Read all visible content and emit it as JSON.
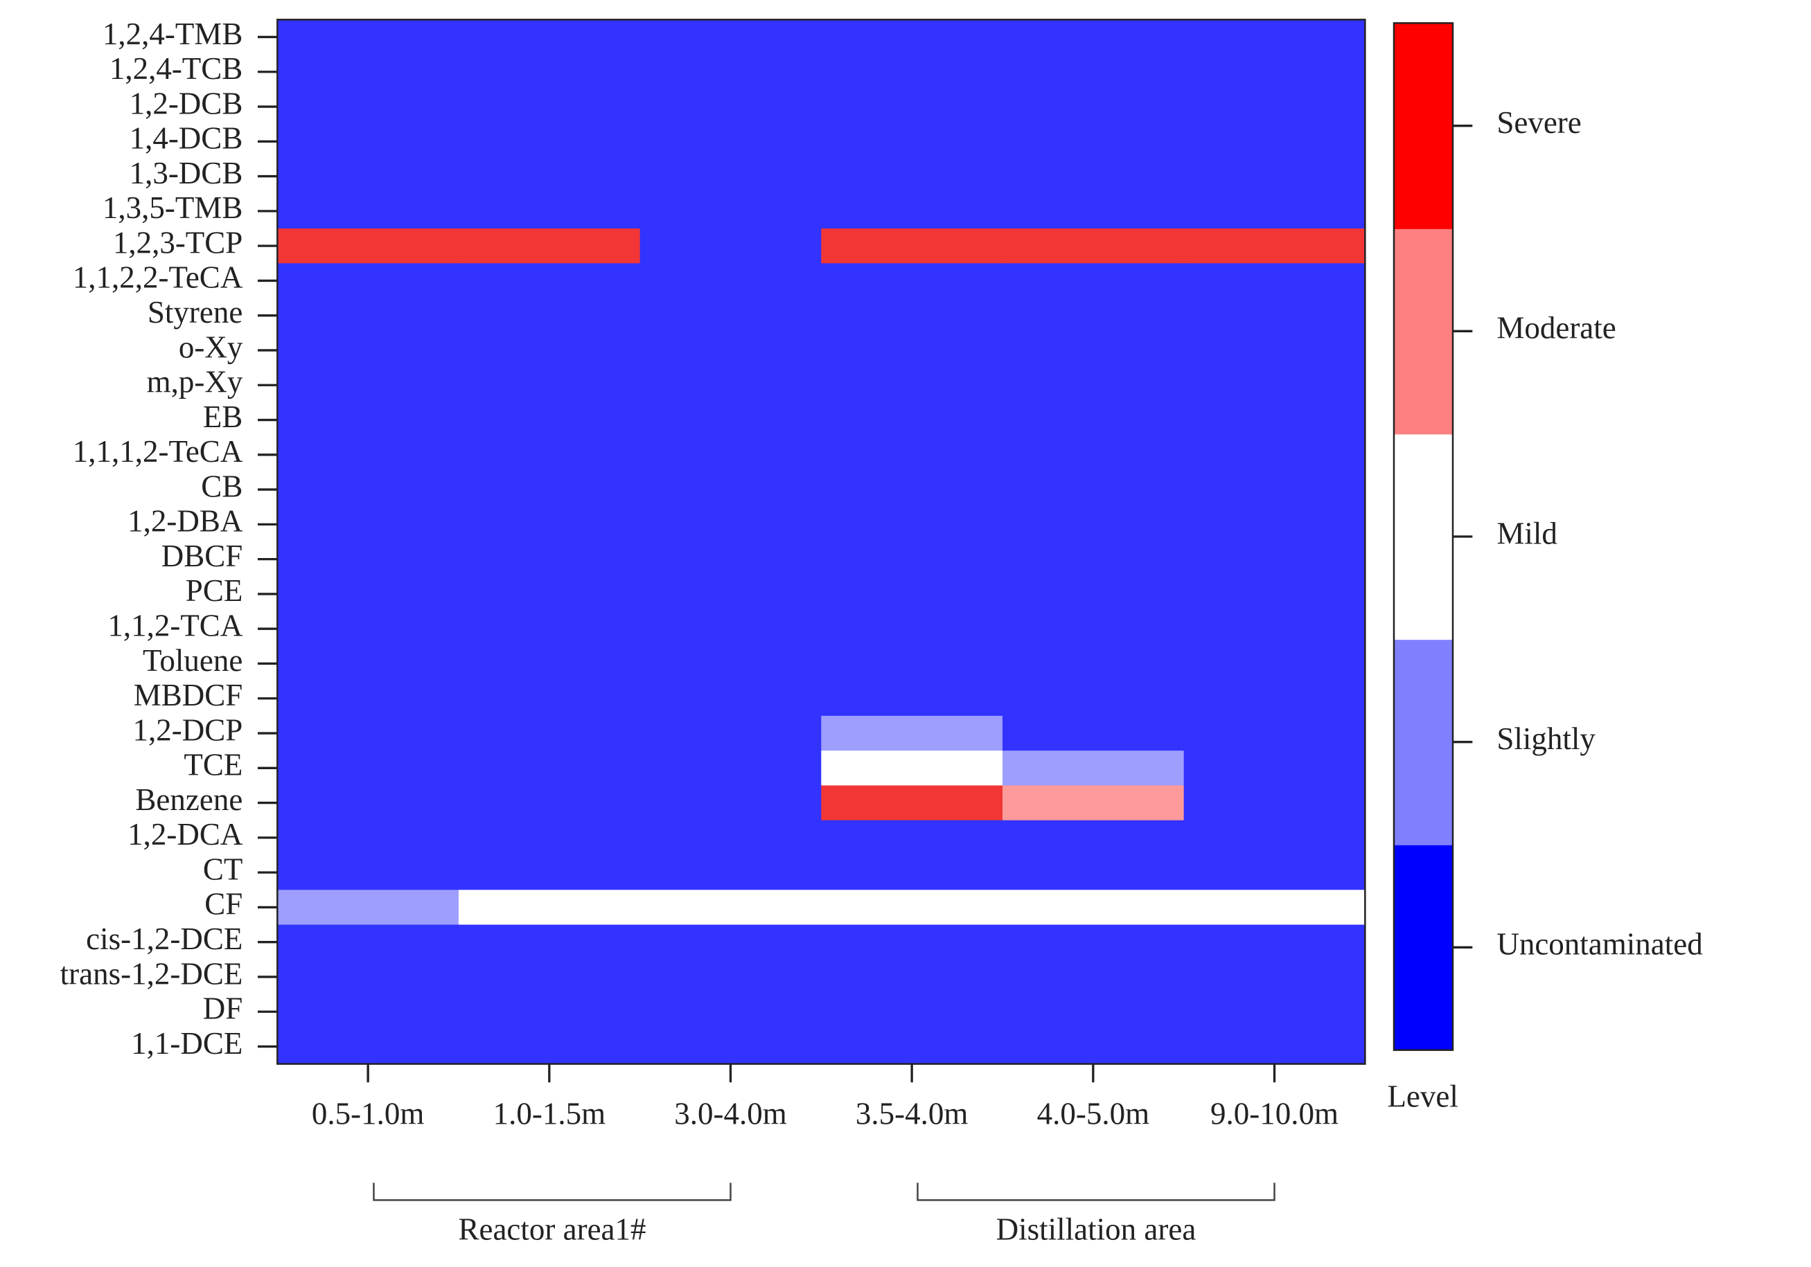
{
  "chart_data": {
    "type": "heatmap",
    "categories": [
      "0.5-1.0m",
      "1.0-1.5m",
      "3.0-4.0m",
      "3.5-4.0m",
      "4.0-5.0m",
      "9.0-10.0m"
    ],
    "rows": [
      "1,2,4-TMB",
      "1,2,4-TCB",
      "1,2-DCB",
      "1,4-DCB",
      "1,3-DCB",
      "1,3,5-TMB",
      "1,2,3-TCP",
      "1,1,2,2-TeCA",
      "Styrene",
      "o-Xy",
      "m,p-Xy",
      "EB",
      "1,1,1,2-TeCA",
      "CB",
      "1,2-DBA",
      "DBCF",
      "PCE",
      "1,1,2-TCA",
      "Toluene",
      "MBDCF",
      "1,2-DCP",
      "TCE",
      "Benzene",
      "1,2-DCA",
      "CT",
      "CF",
      "cis-1,2-DCE",
      "trans-1,2-DCE",
      "DF",
      "1,1-DCE"
    ],
    "z": [
      [
        0,
        0,
        0,
        0,
        0,
        0
      ],
      [
        0,
        0,
        0,
        0,
        0,
        0
      ],
      [
        0,
        0,
        0,
        0,
        0,
        0
      ],
      [
        0,
        0,
        0,
        0,
        0,
        0
      ],
      [
        0,
        0,
        0,
        0,
        0,
        0
      ],
      [
        0,
        0,
        0,
        0,
        0,
        0
      ],
      [
        4,
        4,
        0,
        4,
        4,
        4
      ],
      [
        0,
        0,
        0,
        0,
        0,
        0
      ],
      [
        0,
        0,
        0,
        0,
        0,
        0
      ],
      [
        0,
        0,
        0,
        0,
        0,
        0
      ],
      [
        0,
        0,
        0,
        0,
        0,
        0
      ],
      [
        0,
        0,
        0,
        0,
        0,
        0
      ],
      [
        0,
        0,
        0,
        0,
        0,
        0
      ],
      [
        0,
        0,
        0,
        0,
        0,
        0
      ],
      [
        0,
        0,
        0,
        0,
        0,
        0
      ],
      [
        0,
        0,
        0,
        0,
        0,
        0
      ],
      [
        0,
        0,
        0,
        0,
        0,
        0
      ],
      [
        0,
        0,
        0,
        0,
        0,
        0
      ],
      [
        0,
        0,
        0,
        0,
        0,
        0
      ],
      [
        0,
        0,
        0,
        0,
        0,
        0
      ],
      [
        0,
        0,
        0,
        1,
        0,
        0
      ],
      [
        0,
        0,
        0,
        2,
        1,
        0
      ],
      [
        0,
        0,
        0,
        4,
        3,
        0
      ],
      [
        0,
        0,
        0,
        0,
        0,
        0
      ],
      [
        0,
        0,
        0,
        0,
        0,
        0
      ],
      [
        1,
        2,
        2,
        2,
        2,
        2
      ],
      [
        0,
        0,
        0,
        0,
        0,
        0
      ],
      [
        0,
        0,
        0,
        0,
        0,
        0
      ],
      [
        0,
        0,
        0,
        0,
        0,
        0
      ],
      [
        0,
        0,
        0,
        0,
        0,
        0
      ]
    ],
    "levels": [
      "Uncontaminated",
      "Slightly",
      "Mild",
      "Moderate",
      "Severe"
    ],
    "level_colors": [
      "#0000ff",
      "#8080ff",
      "#ffffff",
      "#ff8080",
      "#ff0000"
    ],
    "cell_colors": [
      "#3333ff",
      "#9e9eff",
      "#ffffff",
      "#ff9a9a",
      "#f23636"
    ],
    "colorbar_title": "Level",
    "groups": [
      "Reactor area1#",
      "Distillation area"
    ]
  }
}
